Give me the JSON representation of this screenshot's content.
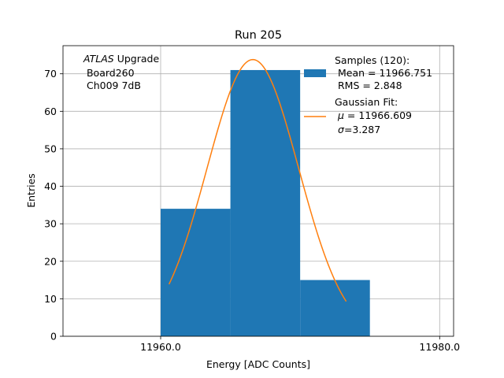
{
  "chart_data": {
    "type": "bar",
    "title": "Run 205",
    "xlabel": "Energy [ADC Counts]",
    "ylabel": "Entries",
    "xlim": [
      11953,
      11981
    ],
    "ylim": [
      0,
      77.5
    ],
    "grid": true,
    "bins": [
      {
        "x0": 11960.0,
        "x1": 11965.0,
        "value": 34
      },
      {
        "x0": 11965.0,
        "x1": 11970.0,
        "value": 71
      },
      {
        "x0": 11970.0,
        "x1": 11975.0,
        "value": 15
      }
    ],
    "bar_color": "#1f77b4",
    "fit": {
      "mu": 11966.609,
      "sigma": 3.287,
      "amplitude": 73.8,
      "x_range": [
        11960.6,
        11973.3
      ],
      "color": "#ff7f0e"
    },
    "x_ticks": [
      11960.0,
      11980.0
    ],
    "x_tick_labels": [
      "11960.0",
      "11980.0"
    ],
    "y_ticks": [
      0,
      10,
      20,
      30,
      40,
      50,
      60,
      70
    ],
    "y_tick_labels": [
      "0",
      "10",
      "20",
      "30",
      "40",
      "50",
      "60",
      "70"
    ],
    "annotation": {
      "italic": "ATLAS",
      "rest": " Upgrade",
      "line2": " Board260",
      "line3": " Ch009 7dB"
    },
    "legend": {
      "position": "top-right",
      "hist_line1": "Samples (120):",
      "hist_line2": " Mean = 11966.751",
      "hist_line3": " RMS = 2.848",
      "fit_line1": "Gaussian Fit:",
      "fit_mu_sym": "μ",
      "fit_mu_val": " = 11966.609",
      "fit_sigma_sym": "σ",
      "fit_sigma_val": "=3.287"
    }
  }
}
